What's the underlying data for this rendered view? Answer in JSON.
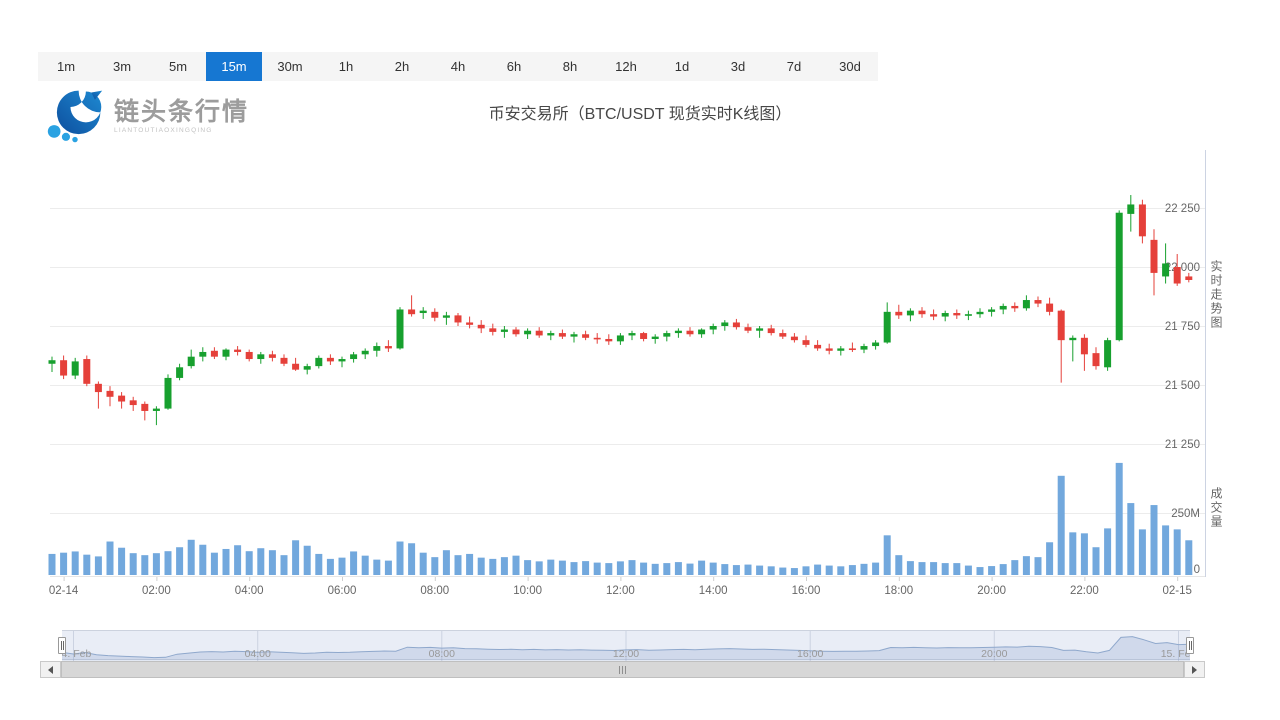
{
  "timeframes": {
    "items": [
      "1m",
      "3m",
      "5m",
      "15m",
      "30m",
      "1h",
      "2h",
      "4h",
      "6h",
      "8h",
      "12h",
      "1d",
      "3d",
      "7d",
      "30d"
    ],
    "active": "15m"
  },
  "brand": {
    "title": "链头条行情",
    "subtitle": "LIANTOUTIAOXINGQING",
    "icon": "wave-fish-logo"
  },
  "header": {
    "title": "币安交易所（BTC/USDT 现货实时K线图）"
  },
  "side_labels": {
    "price_pane": "实时走势图",
    "volume_pane": "成交量"
  },
  "colors": {
    "up": "#17a02e",
    "down": "#e5403a",
    "volume_bar": "#72a8dd",
    "active_tab": "#1677d2",
    "grid": "#ececec",
    "axis_label": "#666666",
    "nav_line": "#8fa8cc",
    "nav_fill": "rgba(110,140,195,0.20)"
  },
  "chart_data": {
    "type": "candlestick+volume",
    "title": "币安交易所（BTC/USDT 现货实时K线图）",
    "interval": "15m",
    "first_candle_time": "02-13 23:45",
    "interval_minutes": 15,
    "price_axis": {
      "ticks": [
        "22 250",
        "22 000",
        "21 750",
        "21 500",
        "21 250"
      ],
      "values": [
        22250,
        22000,
        21750,
        21500,
        21250
      ]
    },
    "volume_axis": {
      "ticks": [
        "250M",
        "0"
      ],
      "values": [
        250,
        0
      ]
    },
    "x_ticks": [
      {
        "label": "02-14",
        "i": 1
      },
      {
        "label": "02:00",
        "i": 9
      },
      {
        "label": "04:00",
        "i": 17
      },
      {
        "label": "06:00",
        "i": 25
      },
      {
        "label": "08:00",
        "i": 33
      },
      {
        "label": "10:00",
        "i": 41
      },
      {
        "label": "12:00",
        "i": 49
      },
      {
        "label": "14:00",
        "i": 57
      },
      {
        "label": "16:00",
        "i": 65
      },
      {
        "label": "18:00",
        "i": 73
      },
      {
        "label": "20:00",
        "i": 81
      },
      {
        "label": "22:00",
        "i": 89
      },
      {
        "label": "02-15",
        "i": 97
      }
    ],
    "candles": [
      [
        21590,
        21620,
        21555,
        21605
      ],
      [
        21605,
        21625,
        21525,
        21540
      ],
      [
        21540,
        21615,
        21525,
        21600
      ],
      [
        21610,
        21625,
        21495,
        21505
      ],
      [
        21505,
        21515,
        21400,
        21470
      ],
      [
        21475,
        21495,
        21410,
        21450
      ],
      [
        21455,
        21470,
        21400,
        21430
      ],
      [
        21435,
        21450,
        21390,
        21415
      ],
      [
        21420,
        21430,
        21350,
        21390
      ],
      [
        21390,
        21410,
        21330,
        21400
      ],
      [
        21400,
        21545,
        21395,
        21530
      ],
      [
        21530,
        21590,
        21520,
        21575
      ],
      [
        21580,
        21650,
        21570,
        21620
      ],
      [
        21620,
        21660,
        21600,
        21640
      ],
      [
        21645,
        21660,
        21610,
        21620
      ],
      [
        21620,
        21655,
        21605,
        21650
      ],
      [
        21650,
        21665,
        21625,
        21640
      ],
      [
        21640,
        21650,
        21600,
        21610
      ],
      [
        21610,
        21640,
        21590,
        21630
      ],
      [
        21630,
        21645,
        21600,
        21615
      ],
      [
        21615,
        21630,
        21580,
        21590
      ],
      [
        21590,
        21615,
        21560,
        21565
      ],
      [
        21565,
        21590,
        21545,
        21580
      ],
      [
        21580,
        21625,
        21570,
        21615
      ],
      [
        21615,
        21630,
        21585,
        21600
      ],
      [
        21600,
        21620,
        21575,
        21610
      ],
      [
        21610,
        21640,
        21595,
        21630
      ],
      [
        21630,
        21655,
        21610,
        21645
      ],
      [
        21645,
        21680,
        21620,
        21665
      ],
      [
        21665,
        21690,
        21640,
        21655
      ],
      [
        21655,
        21830,
        21650,
        21820
      ],
      [
        21820,
        21880,
        21790,
        21800
      ],
      [
        21805,
        21830,
        21780,
        21815
      ],
      [
        21810,
        21825,
        21770,
        21785
      ],
      [
        21785,
        21810,
        21755,
        21795
      ],
      [
        21795,
        21805,
        21750,
        21765
      ],
      [
        21765,
        21790,
        21740,
        21755
      ],
      [
        21755,
        21775,
        21720,
        21740
      ],
      [
        21740,
        21760,
        21710,
        21725
      ],
      [
        21725,
        21750,
        21700,
        21735
      ],
      [
        21735,
        21745,
        21705,
        21715
      ],
      [
        21715,
        21740,
        21695,
        21730
      ],
      [
        21730,
        21745,
        21700,
        21710
      ],
      [
        21710,
        21730,
        21690,
        21720
      ],
      [
        21720,
        21735,
        21695,
        21705
      ],
      [
        21705,
        21725,
        21680,
        21715
      ],
      [
        21715,
        21730,
        21690,
        21700
      ],
      [
        21700,
        21720,
        21675,
        21695
      ],
      [
        21695,
        21715,
        21670,
        21685
      ],
      [
        21685,
        21720,
        21670,
        21710
      ],
      [
        21710,
        21730,
        21690,
        21720
      ],
      [
        21720,
        21725,
        21685,
        21695
      ],
      [
        21695,
        21715,
        21675,
        21705
      ],
      [
        21705,
        21730,
        21685,
        21720
      ],
      [
        21720,
        21740,
        21700,
        21730
      ],
      [
        21730,
        21745,
        21705,
        21715
      ],
      [
        21715,
        21740,
        21700,
        21735
      ],
      [
        21735,
        21760,
        21715,
        21750
      ],
      [
        21750,
        21775,
        21730,
        21765
      ],
      [
        21765,
        21780,
        21735,
        21745
      ],
      [
        21745,
        21760,
        21720,
        21730
      ],
      [
        21730,
        21750,
        21700,
        21740
      ],
      [
        21740,
        21755,
        21710,
        21720
      ],
      [
        21720,
        21735,
        21695,
        21705
      ],
      [
        21705,
        21720,
        21680,
        21690
      ],
      [
        21690,
        21710,
        21660,
        21670
      ],
      [
        21670,
        21690,
        21645,
        21655
      ],
      [
        21655,
        21675,
        21630,
        21645
      ],
      [
        21645,
        21665,
        21625,
        21655
      ],
      [
        21655,
        21680,
        21640,
        21650
      ],
      [
        21650,
        21675,
        21635,
        21665
      ],
      [
        21665,
        21690,
        21650,
        21680
      ],
      [
        21680,
        21850,
        21675,
        21810
      ],
      [
        21810,
        21840,
        21780,
        21795
      ],
      [
        21795,
        21825,
        21770,
        21815
      ],
      [
        21815,
        21830,
        21785,
        21800
      ],
      [
        21800,
        21820,
        21775,
        21790
      ],
      [
        21790,
        21815,
        21770,
        21805
      ],
      [
        21805,
        21820,
        21780,
        21795
      ],
      [
        21795,
        21815,
        21775,
        21800
      ],
      [
        21800,
        21825,
        21785,
        21810
      ],
      [
        21810,
        21830,
        21790,
        21820
      ],
      [
        21820,
        21845,
        21800,
        21835
      ],
      [
        21835,
        21850,
        21810,
        21825
      ],
      [
        21825,
        21880,
        21815,
        21860
      ],
      [
        21860,
        21875,
        21830,
        21845
      ],
      [
        21845,
        21870,
        21795,
        21810
      ],
      [
        21815,
        21820,
        21510,
        21690
      ],
      [
        21690,
        21710,
        21600,
        21700
      ],
      [
        21700,
        21715,
        21560,
        21630
      ],
      [
        21635,
        21660,
        21565,
        21580
      ],
      [
        21575,
        21700,
        21560,
        21690
      ],
      [
        21690,
        22240,
        21685,
        22230
      ],
      [
        22225,
        22305,
        22150,
        22265
      ],
      [
        22265,
        22285,
        22100,
        22130
      ],
      [
        22115,
        22160,
        21880,
        21975
      ],
      [
        21960,
        22100,
        21930,
        22015
      ],
      [
        22000,
        22055,
        21920,
        21930
      ],
      [
        21960,
        21975,
        21935,
        21945
      ]
    ],
    "volumes_M": [
      85,
      90,
      95,
      82,
      75,
      135,
      110,
      88,
      80,
      88,
      96,
      112,
      142,
      122,
      90,
      105,
      120,
      96,
      108,
      100,
      80,
      140,
      118,
      85,
      65,
      70,
      95,
      78,
      62,
      58,
      135,
      128,
      90,
      72,
      100,
      80,
      85,
      70,
      65,
      72,
      78,
      60,
      55,
      62,
      58,
      52,
      56,
      50,
      48,
      55,
      60,
      50,
      45,
      48,
      52,
      46,
      58,
      50,
      44,
      40,
      42,
      38,
      35,
      30,
      28,
      35,
      42,
      38,
      35,
      40,
      45,
      50,
      160,
      80,
      56,
      52,
      52,
      48,
      48,
      38,
      32,
      36,
      44,
      60,
      76,
      72,
      132,
      400,
      172,
      168,
      112,
      188,
      452,
      290,
      184,
      282,
      200,
      184,
      140
    ],
    "navigator": {
      "ticks": [
        {
          "label": "14. Feb",
          "pos": 0.0102
        },
        {
          "label": "04:00",
          "pos": 0.1735
        },
        {
          "label": "08:00",
          "pos": 0.3367
        },
        {
          "label": "12:00",
          "pos": 0.5
        },
        {
          "label": "16:00",
          "pos": 0.6633
        },
        {
          "label": "20:00",
          "pos": 0.8265
        },
        {
          "label": "15. Feb",
          "pos": 0.9898
        }
      ]
    }
  }
}
